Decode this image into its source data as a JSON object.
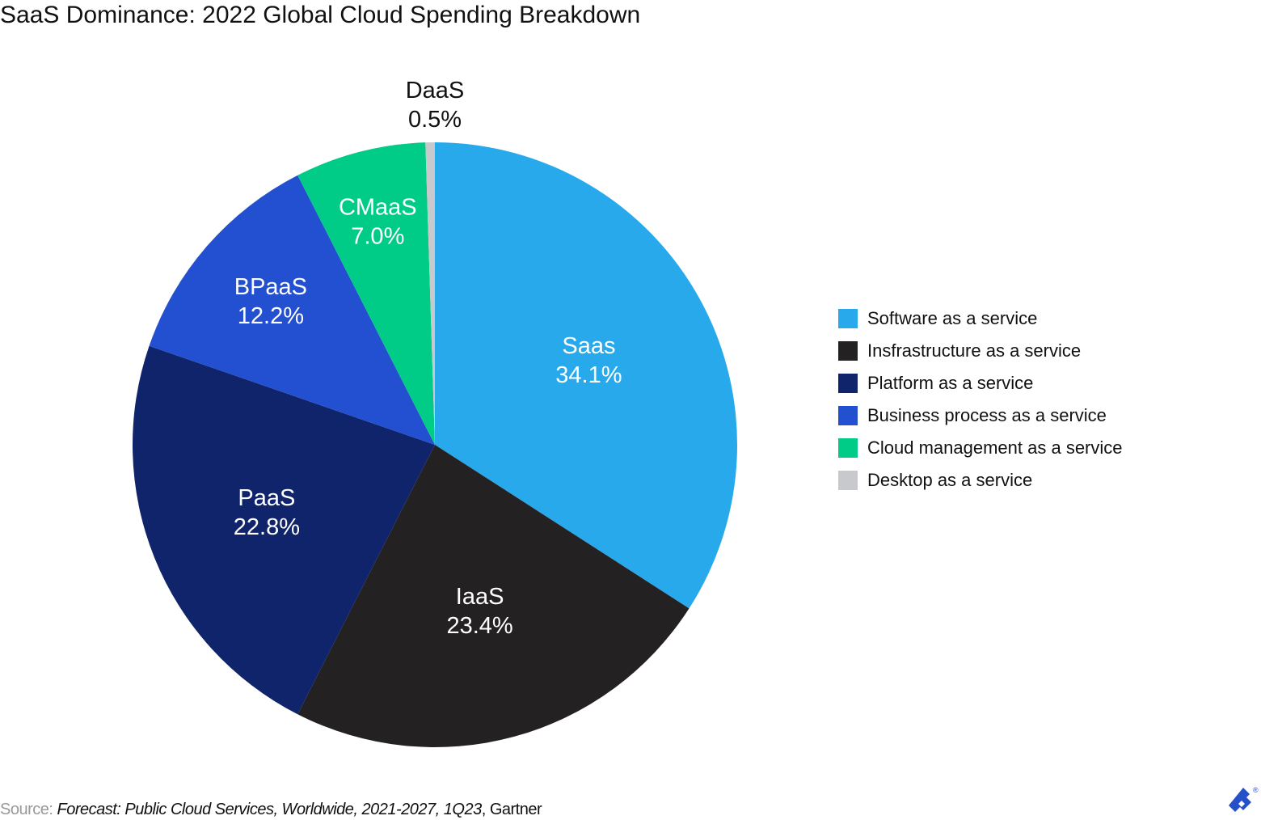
{
  "chart_data": {
    "type": "pie",
    "title": "SaaS Dominance: 2022 Global Cloud Spending Breakdown",
    "slices": [
      {
        "label": "Saas",
        "value": 34.1,
        "display": "34.1%",
        "legend": "Software as a service",
        "color": "#27a9ec"
      },
      {
        "label": "IaaS",
        "value": 23.4,
        "display": "23.4%",
        "legend": "Insfrastructure as a service",
        "color": "#242122"
      },
      {
        "label": "PaaS",
        "value": 22.8,
        "display": "22.8%",
        "legend": "Platform as a service",
        "color": "#10246c"
      },
      {
        "label": "BPaaS",
        "value": 12.2,
        "display": "12.2%",
        "legend": "Business process as a service",
        "color": "#2250d0"
      },
      {
        "label": "CMaaS",
        "value": 7.0,
        "display": "7.0%",
        "legend": "Cloud management as a service",
        "color": "#00cc88"
      },
      {
        "label": "DaaS",
        "value": 0.5,
        "display": "0.5%",
        "legend": "Desktop as a service",
        "color": "#c8c9cc"
      }
    ],
    "start": "top",
    "direction": "clockwise",
    "legend_position": "right"
  },
  "source": {
    "label": "Source:",
    "title": "Forecast: Public Cloud Services, Worldwide, 2021-2027, 1Q23",
    "publisher": ", Gartner"
  },
  "logo": {
    "name": "toptal-logo",
    "mark": "®"
  }
}
